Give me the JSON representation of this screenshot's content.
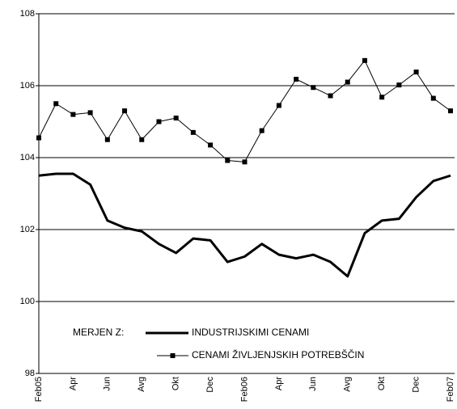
{
  "chart_data": {
    "type": "line",
    "categories": [
      "Feb05",
      null,
      "Apr",
      null,
      "Jun",
      null,
      "Avg",
      null,
      "Okt",
      null,
      "Dec",
      null,
      "Feb06",
      null,
      "Apr",
      null,
      "Jun",
      null,
      "Avg",
      null,
      "Okt",
      null,
      "Dec",
      null,
      "Feb07"
    ],
    "series": [
      {
        "name": "INDUSTRIJSKIMI CENAMI",
        "color": "#000000",
        "marker": "none",
        "line_width": 3,
        "values": [
          103.5,
          103.55,
          103.55,
          103.25,
          102.25,
          102.05,
          101.95,
          101.6,
          101.35,
          101.75,
          101.7,
          101.1,
          101.25,
          101.6,
          101.3,
          101.2,
          101.3,
          101.1,
          100.7,
          101.9,
          102.25,
          102.3,
          102.9,
          103.35,
          103.5
        ]
      },
      {
        "name": "CENAMI ŽIVLJENJSKIH POTREBŠČIN",
        "color": "#000000",
        "marker": "square",
        "line_width": 1,
        "values": [
          104.55,
          105.5,
          105.2,
          105.25,
          104.5,
          105.3,
          104.5,
          105.0,
          105.1,
          104.7,
          104.35,
          103.92,
          103.88,
          104.75,
          105.45,
          106.18,
          105.95,
          105.72,
          106.1,
          106.7,
          105.68,
          106.02,
          106.38,
          105.65,
          105.3
        ]
      }
    ],
    "legend_title": "MERJEN Z:",
    "ylim": [
      98,
      108
    ],
    "yticks": [
      98,
      100,
      102,
      104,
      106,
      108
    ],
    "grid": true
  }
}
